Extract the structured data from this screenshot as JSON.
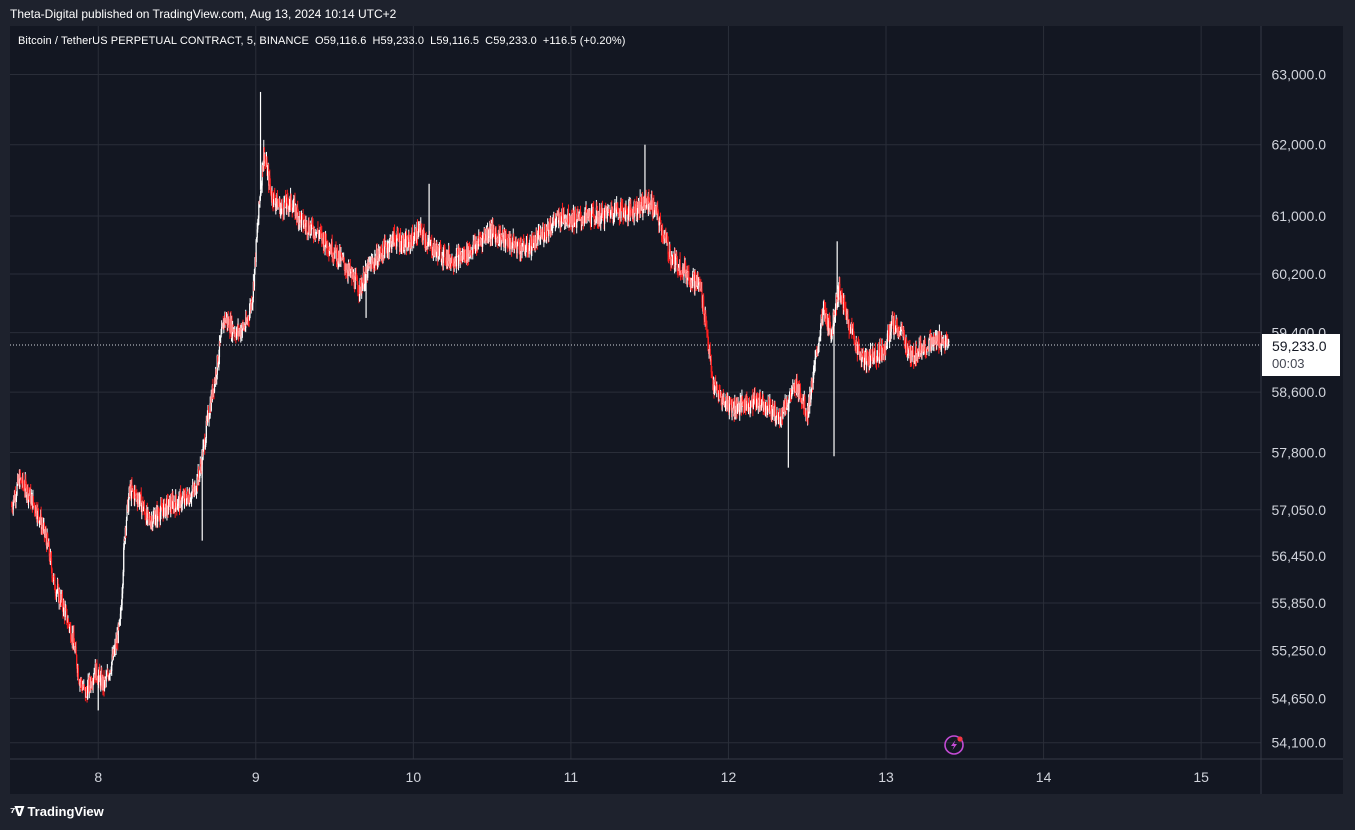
{
  "header": {
    "published_text": "Theta-Digital published on TradingView.com, Aug 13, 2024 10:14 UTC+2"
  },
  "legend": {
    "symbol": "Bitcoin / TetherUS PERPETUAL CONTRACT, 5, BINANCE",
    "open_label": "O",
    "open": "59,116.6",
    "high_label": "H",
    "high": "59,233.0",
    "low_label": "L",
    "low": "59,116.5",
    "close_label": "C",
    "close": "59,233.0",
    "change": "+116.5 (+0.20%)"
  },
  "price_badge": {
    "price": "59,233.0",
    "countdown": "00:03"
  },
  "footer": {
    "brand": "TradingView"
  },
  "colors": {
    "background": "#131722",
    "grid": "#2a2e39",
    "up_candle": "#ffffff",
    "down_candle": "#ff1f1f",
    "text": "#d1d4dc",
    "alert_icon": "#c34bd5"
  },
  "icons": {
    "alert": "lightning-alert-icon",
    "brand_logo": "tradingview-logo-icon"
  },
  "chart_data": {
    "type": "candlestick",
    "title": "Bitcoin / TetherUS PERPETUAL CONTRACT, 5, BINANCE",
    "interval": "5",
    "grid": true,
    "last_price": 59233.0,
    "y_axis": {
      "ticks": [
        63000,
        62000,
        61000,
        60200,
        59400,
        58600,
        57800,
        57050,
        56450,
        55850,
        55250,
        54650,
        54100
      ],
      "tick_labels": [
        "63,000.0",
        "62,000.0",
        "61,000.0",
        "60,200.0",
        "59,400.0",
        "58,600.0",
        "57,800.0",
        "57,050.0",
        "56,450.0",
        "55,850.0",
        "55,250.0",
        "54,650.0",
        "54,100.0"
      ],
      "scale": "log",
      "range": [
        53900,
        63700
      ]
    },
    "x_axis": {
      "ticks": [
        8,
        9,
        10,
        11,
        12,
        13,
        14,
        15
      ],
      "tick_labels": [
        "8",
        "9",
        "10",
        "11",
        "12",
        13,
        "14",
        "15"
      ],
      "range": [
        7.44,
        15.38
      ]
    },
    "price_path": [
      [
        7.45,
        57100
      ],
      [
        7.5,
        57450
      ],
      [
        7.55,
        57300
      ],
      [
        7.62,
        57000
      ],
      [
        7.68,
        56600
      ],
      [
        7.72,
        56100
      ],
      [
        7.78,
        55800
      ],
      [
        7.84,
        55400
      ],
      [
        7.88,
        54900
      ],
      [
        7.92,
        54700
      ],
      [
        7.98,
        55000
      ],
      [
        8.04,
        54800
      ],
      [
        8.1,
        55200
      ],
      [
        8.14,
        55600
      ],
      [
        8.17,
        56800
      ],
      [
        8.2,
        57300
      ],
      [
        8.26,
        57200
      ],
      [
        8.32,
        56900
      ],
      [
        8.38,
        57000
      ],
      [
        8.44,
        57100
      ],
      [
        8.5,
        57150
      ],
      [
        8.56,
        57200
      ],
      [
        8.61,
        57300
      ],
      [
        8.65,
        57600
      ],
      [
        8.7,
        58300
      ],
      [
        8.75,
        58900
      ],
      [
        8.8,
        59600
      ],
      [
        8.88,
        59400
      ],
      [
        8.94,
        59500
      ],
      [
        8.98,
        59900
      ],
      [
        9.02,
        61100
      ],
      [
        9.05,
        61900
      ],
      [
        9.1,
        61300
      ],
      [
        9.16,
        61100
      ],
      [
        9.22,
        61200
      ],
      [
        9.3,
        60900
      ],
      [
        9.38,
        60800
      ],
      [
        9.46,
        60600
      ],
      [
        9.54,
        60400
      ],
      [
        9.6,
        60200
      ],
      [
        9.66,
        60000
      ],
      [
        9.72,
        60300
      ],
      [
        9.8,
        60500
      ],
      [
        9.88,
        60700
      ],
      [
        9.96,
        60600
      ],
      [
        10.04,
        60800
      ],
      [
        10.1,
        60600
      ],
      [
        10.16,
        60500
      ],
      [
        10.24,
        60400
      ],
      [
        10.32,
        60450
      ],
      [
        10.4,
        60600
      ],
      [
        10.48,
        60800
      ],
      [
        10.56,
        60700
      ],
      [
        10.64,
        60600
      ],
      [
        10.72,
        60550
      ],
      [
        10.8,
        60700
      ],
      [
        10.88,
        60900
      ],
      [
        10.96,
        61000
      ],
      [
        11.04,
        60950
      ],
      [
        11.12,
        61000
      ],
      [
        11.2,
        61000
      ],
      [
        11.28,
        61100
      ],
      [
        11.36,
        61050
      ],
      [
        11.44,
        61150
      ],
      [
        11.5,
        61200
      ],
      [
        11.54,
        61050
      ],
      [
        11.58,
        60800
      ],
      [
        11.64,
        60400
      ],
      [
        11.7,
        60300
      ],
      [
        11.76,
        60150
      ],
      [
        11.82,
        60050
      ],
      [
        11.86,
        59500
      ],
      [
        11.9,
        58700
      ],
      [
        11.96,
        58500
      ],
      [
        12.04,
        58400
      ],
      [
        12.12,
        58450
      ],
      [
        12.2,
        58500
      ],
      [
        12.26,
        58400
      ],
      [
        12.32,
        58250
      ],
      [
        12.38,
        58500
      ],
      [
        12.44,
        58700
      ],
      [
        12.5,
        58300
      ],
      [
        12.56,
        59100
      ],
      [
        12.6,
        59700
      ],
      [
        12.65,
        59400
      ],
      [
        12.7,
        60000
      ],
      [
        12.74,
        59700
      ],
      [
        12.8,
        59300
      ],
      [
        12.86,
        59000
      ],
      [
        12.92,
        59100
      ],
      [
        12.98,
        59150
      ],
      [
        13.04,
        59500
      ],
      [
        13.1,
        59400
      ],
      [
        13.16,
        59050
      ],
      [
        13.22,
        59200
      ],
      [
        13.28,
        59250
      ],
      [
        13.34,
        59300
      ],
      [
        13.4,
        59233
      ]
    ],
    "spikes": [
      {
        "x": 9.03,
        "high": 62750
      },
      {
        "x": 11.47,
        "high": 62000
      },
      {
        "x": 12.38,
        "low": 57600
      },
      {
        "x": 12.67,
        "low": 57750
      },
      {
        "x": 12.69,
        "high": 60650
      },
      {
        "x": 8.0,
        "low": 54500
      },
      {
        "x": 8.66,
        "low": 56650
      },
      {
        "x": 10.1,
        "high": 61450
      },
      {
        "x": 9.7,
        "low": 59600
      }
    ]
  }
}
